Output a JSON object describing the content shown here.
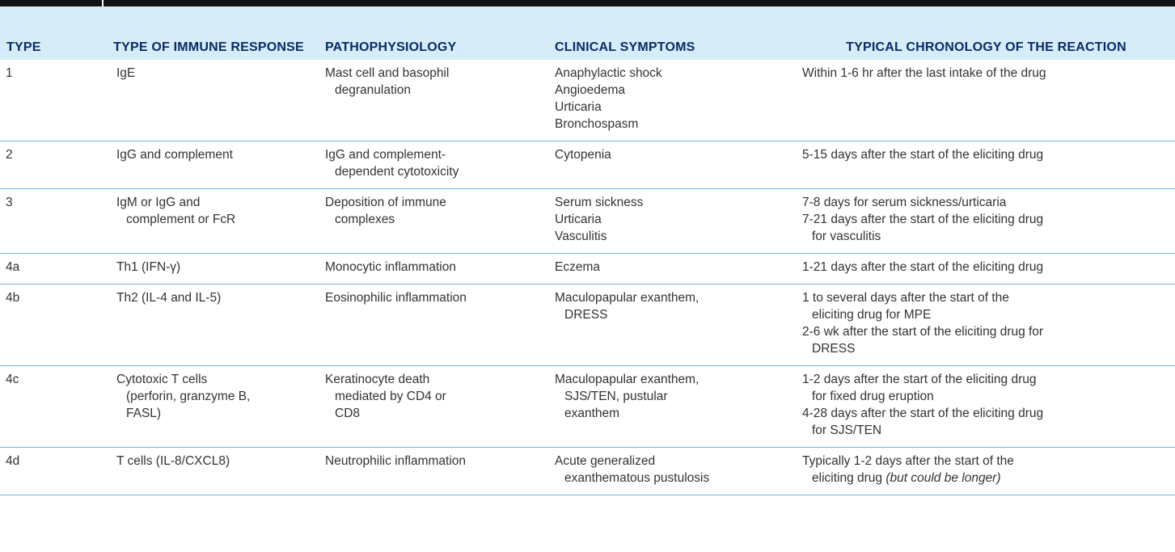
{
  "headers": {
    "type": "TYPE",
    "immune": "TYPE OF IMMUNE RESPONSE",
    "patho": "PATHOPHYSIOLOGY",
    "symptoms": "CLINICAL SYMPTOMS",
    "chronology": "TYPICAL CHRONOLOGY OF THE REACTION"
  },
  "rows": [
    {
      "type": "1",
      "immune": [
        "IgE"
      ],
      "patho": [
        "Mast cell and basophil",
        "degranulation"
      ],
      "symptoms": [
        "Anaphylactic shock",
        "Angioedema",
        "Urticaria",
        "Bronchospasm"
      ],
      "chronology": [
        "Within 1-6 hr after the last intake of the drug"
      ],
      "chronology_note": ""
    },
    {
      "type": "2",
      "immune": [
        "IgG and complement"
      ],
      "patho": [
        "IgG and complement-",
        "dependent cytotoxicity"
      ],
      "symptoms": [
        "Cytopenia"
      ],
      "chronology": [
        "5-15 days after the start of the eliciting drug"
      ],
      "chronology_note": ""
    },
    {
      "type": "3",
      "immune": [
        "IgM or IgG and",
        "complement or FcR"
      ],
      "patho": [
        "Deposition of immune",
        "complexes"
      ],
      "symptoms": [
        "Serum sickness",
        "Urticaria",
        "Vasculitis"
      ],
      "chronology": [
        "7-8 days for serum sickness/urticaria",
        "7-21 days after the start of the eliciting drug",
        "for vasculitis"
      ],
      "chronology_note": ""
    },
    {
      "type": "4a",
      "immune": [
        "Th1 (IFN-γ)"
      ],
      "patho": [
        "Monocytic inflammation"
      ],
      "symptoms": [
        "Eczema"
      ],
      "chronology": [
        "1-21 days after the start of the eliciting drug"
      ],
      "chronology_note": ""
    },
    {
      "type": "4b",
      "immune": [
        "Th2 (IL-4 and IL-5)"
      ],
      "patho": [
        "Eosinophilic inflammation"
      ],
      "symptoms": [
        "Maculopapular exanthem,",
        "DRESS"
      ],
      "chronology": [
        "1 to several days after the start of the",
        "eliciting drug for MPE",
        "2-6 wk after the start of the eliciting drug for",
        "DRESS"
      ],
      "chronology_note": ""
    },
    {
      "type": "4c",
      "immune": [
        "Cytotoxic T cells",
        "(perforin, granzyme B,",
        "FASL)"
      ],
      "patho": [
        "Keratinocyte death",
        "mediated by CD4 or",
        "CD8"
      ],
      "symptoms": [
        "Maculopapular exanthem,",
        "SJS/TEN, pustular",
        "exanthem"
      ],
      "chronology": [
        "1-2 days after the start of the eliciting drug",
        "for fixed drug eruption",
        "4-28 days after the start of the eliciting drug",
        "for SJS/TEN"
      ],
      "chronology_note": ""
    },
    {
      "type": "4d",
      "immune": [
        "T cells (IL-8/CXCL8)"
      ],
      "patho": [
        "Neutrophilic inflammation"
      ],
      "symptoms": [
        "Acute generalized",
        "exanthematous pustulosis"
      ],
      "chronology": [
        "Typically 1-2 days after the start of the",
        "eliciting drug"
      ],
      "chronology_note": "(but could be longer)"
    }
  ]
}
